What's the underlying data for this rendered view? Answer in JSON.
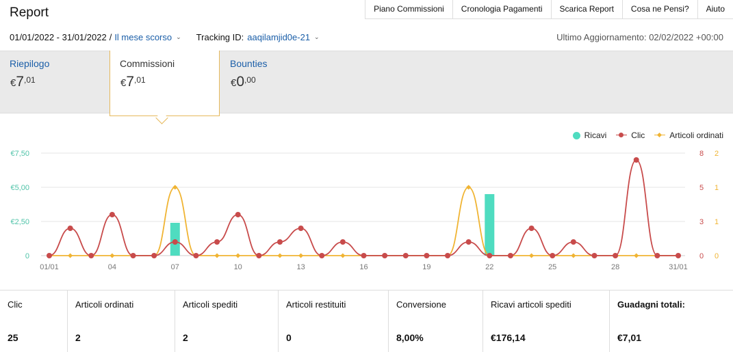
{
  "header": {
    "title": "Report",
    "nav": [
      "Piano Commissioni",
      "Cronologia Pagamenti",
      "Scarica Report",
      "Cosa ne Pensi?",
      "Aiuto"
    ]
  },
  "filters": {
    "date_range": "01/01/2022 - 31/01/2022",
    "preset": "Il mese scorso",
    "tracking_label": "Tracking ID:",
    "tracking_id": "aaqilamjid0e-21",
    "last_update": "Ultimo Aggiornamento: 02/02/2022 +00:00"
  },
  "tabs": [
    {
      "label": "Riepilogo",
      "currency": "€",
      "whole": "7",
      "cents": ",01"
    },
    {
      "label": "Commissioni",
      "currency": "€",
      "whole": "7",
      "cents": ",01"
    },
    {
      "label": "Bounties",
      "currency": "€",
      "whole": "0",
      "cents": ",00"
    }
  ],
  "legend": {
    "ricavi": "Ricavi",
    "clic": "Clic",
    "articoli": "Articoli ordinati"
  },
  "colors": {
    "ricavi": "#4fdcc0",
    "clic": "#c84b4b",
    "articoli": "#f0b433",
    "accent_link": "#1a5ea8"
  },
  "chart_data": {
    "type": "line",
    "x": [
      "01/01",
      "02",
      "03",
      "04",
      "05",
      "06",
      "07",
      "08",
      "09",
      "10",
      "11",
      "12",
      "13",
      "14",
      "15",
      "16",
      "17",
      "18",
      "19",
      "20",
      "21",
      "22",
      "23",
      "24",
      "25",
      "26",
      "27",
      "28",
      "29",
      "30",
      "31/01"
    ],
    "x_tick_labels": [
      "01/01",
      "04",
      "07",
      "10",
      "13",
      "16",
      "19",
      "22",
      "25",
      "28",
      "31/01"
    ],
    "series": [
      {
        "name": "Ricavi",
        "kind": "bar",
        "axis": "left",
        "values": [
          0,
          0,
          0,
          0,
          0,
          0,
          2.4,
          0,
          0,
          0,
          0,
          0,
          0,
          0,
          0,
          0,
          0,
          0,
          0,
          0,
          0,
          4.5,
          0,
          0,
          0,
          0,
          0,
          0,
          0,
          0,
          0
        ]
      },
      {
        "name": "Clic",
        "kind": "line",
        "axis": "right1",
        "values": [
          0,
          2,
          0,
          3,
          0,
          0,
          1,
          0,
          1,
          3,
          0,
          1,
          2,
          0,
          1,
          0,
          0,
          0,
          0,
          0,
          1,
          0,
          0,
          2,
          0,
          1,
          0,
          0,
          7,
          0,
          0
        ]
      },
      {
        "name": "Articoli ordinati",
        "kind": "line",
        "axis": "right2",
        "values": [
          0,
          0,
          0,
          0,
          0,
          0,
          1,
          0,
          0,
          0,
          0,
          0,
          0,
          0,
          0,
          0,
          0,
          0,
          0,
          0,
          1,
          0,
          0,
          0,
          0,
          0,
          0,
          0,
          0,
          0,
          0
        ]
      }
    ],
    "left_axis": {
      "ticks": [
        "0",
        "€2,50",
        "€5,00",
        "€7,50"
      ],
      "range": [
        0,
        7.5
      ]
    },
    "right1_axis": {
      "ticks": [
        "0",
        "3",
        "5",
        "8"
      ],
      "range": [
        0,
        7.5
      ]
    },
    "right2_axis": {
      "ticks": [
        "0",
        "1",
        "1",
        "2"
      ],
      "range": [
        0,
        1.5
      ]
    },
    "grid": true,
    "legend_position": "top-right"
  },
  "stats": [
    {
      "label": "Clic",
      "value": "25"
    },
    {
      "label": "Articoli ordinati",
      "value": "2"
    },
    {
      "label": "Articoli spediti",
      "value": "2"
    },
    {
      "label": "Articoli restituiti",
      "value": "0"
    },
    {
      "label": "Conversione",
      "value": "8,00%"
    },
    {
      "label": "Ricavi articoli spediti",
      "value": "€176,14"
    },
    {
      "label": "Guadagni totali:",
      "value": "€7,01"
    }
  ]
}
